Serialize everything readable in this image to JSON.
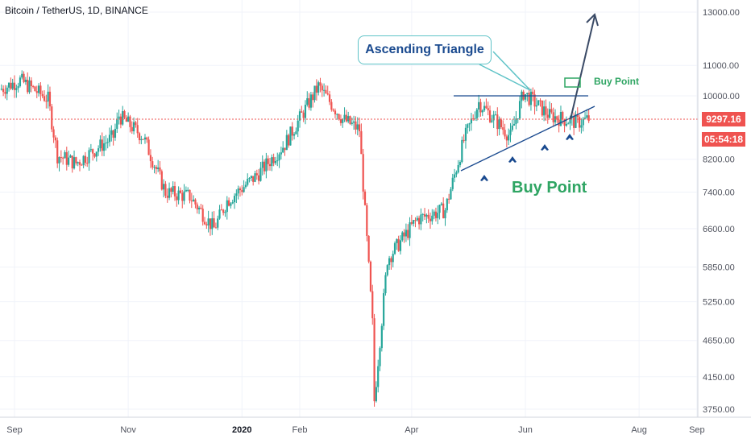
{
  "header": {
    "symbol": "Bitcoin / TetherUS, 1D, BINANCE"
  },
  "y_axis": {
    "ticks": [
      "13000.00",
      "11000.00",
      "10000.00",
      "8200.00",
      "7400.00",
      "6600.00",
      "5850.00",
      "5250.00",
      "4650.00",
      "4150.00",
      "3750.00"
    ],
    "last_price": "9297.16",
    "countdown": "05:54:18"
  },
  "x_axis": {
    "labels": [
      {
        "text": "Sep",
        "bold": false
      },
      {
        "text": "Nov",
        "bold": false
      },
      {
        "text": "2020",
        "bold": true
      },
      {
        "text": "Feb",
        "bold": false
      },
      {
        "text": "Apr",
        "bold": false
      },
      {
        "text": "Jun",
        "bold": false
      },
      {
        "text": "Aug",
        "bold": false
      },
      {
        "text": "Sep",
        "bold": false
      }
    ]
  },
  "annotations": {
    "callout": "Ascending Triangle",
    "buy_point_big": "Buy Point",
    "buy_point_small": "Buy Point"
  },
  "colors": {
    "up": "#26a69a",
    "down": "#ef5350",
    "trendline": "#1a4a8f",
    "label_green": "#2fa563",
    "price_line": "#ef5350"
  },
  "chart_data": {
    "type": "candlestick",
    "title": "Bitcoin / TetherUS, 1D, BINANCE",
    "y_scale": "log",
    "series": [
      {
        "name": "BTCUSDT",
        "path": [
          [
            "2019-08-25",
            10200
          ],
          [
            "2019-09-05",
            10500
          ],
          [
            "2019-09-20",
            9900
          ],
          [
            "2019-09-25",
            8300
          ],
          [
            "2019-10-05",
            8100
          ],
          [
            "2019-10-25",
            8800
          ],
          [
            "2019-10-28",
            9400
          ],
          [
            "2019-11-10",
            8800
          ],
          [
            "2019-11-22",
            7400
          ],
          [
            "2019-12-05",
            7300
          ],
          [
            "2019-12-18",
            6600
          ],
          [
            "2019-12-25",
            7200
          ],
          [
            "2020-01-10",
            7800
          ],
          [
            "2020-01-25",
            8600
          ],
          [
            "2020-02-12",
            10300
          ],
          [
            "2020-02-25",
            9300
          ],
          [
            "2020-03-05",
            9000
          ],
          [
            "2020-03-12",
            4900
          ],
          [
            "2020-03-13",
            3850
          ],
          [
            "2020-03-20",
            6000
          ],
          [
            "2020-04-05",
            6800
          ],
          [
            "2020-04-20",
            7000
          ],
          [
            "2020-04-30",
            8700
          ],
          [
            "2020-05-08",
            9800
          ],
          [
            "2020-05-25",
            8800
          ],
          [
            "2020-06-01",
            10100
          ],
          [
            "2020-06-15",
            9400
          ],
          [
            "2020-06-30",
            9200
          ],
          [
            "2020-07-06",
            9300
          ]
        ]
      }
    ],
    "last_price": 9297.16
  }
}
